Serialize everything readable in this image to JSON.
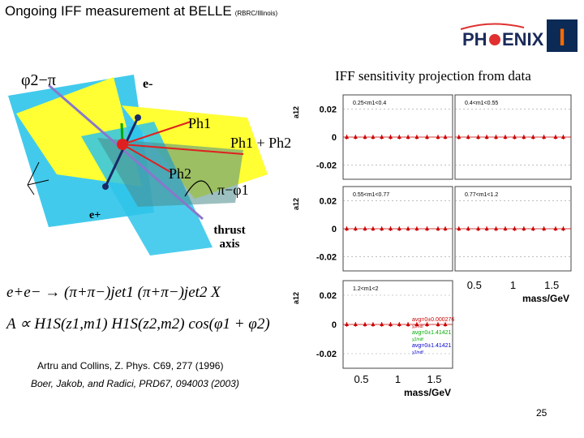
{
  "slide": {
    "title": "Ongoing IFF measurement at BELLE",
    "title_suffix": "(RBRC/Illinois)",
    "iff_caption": "IFF sensitivity projection from data",
    "page_number": "25",
    "references": [
      "Artru and Collins, Z. Phys. C69, 277 (1996)",
      "Boer, Jakob, and Radici, PRD67, 094003 (2003)"
    ]
  },
  "logo": {
    "text_left": "PH",
    "text_right": "ENIX",
    "emblem": "I"
  },
  "diagram": {
    "phi_label": "φ2−π",
    "e_minus": "e-",
    "e_plus": "e+",
    "ph1": "Ph1",
    "ph1_plus_ph2": "Ph1 + Ph2",
    "ph2": "Ph2",
    "pi_minus_phi1": "π−φ1",
    "thrust_axis": "thrust axis"
  },
  "formulas": {
    "reaction": "e+e− → (π+π−)jet1 (π+π−)jet2 X",
    "asymmetry": "A ∝ H1S(z1,m1) H1S(z2,m2) cos(φ1 + φ2)"
  },
  "chart_data": {
    "type": "scatter",
    "xlabel": "mass/GeV",
    "ylabel": "a12",
    "x_ticks": [
      "0.5",
      "1",
      "1.5"
    ],
    "y_ticks": [
      "0.02",
      "0",
      "-0.02"
    ],
    "xlim": [
      0.25,
      1.75
    ],
    "ylim": [
      -0.03,
      0.03
    ],
    "panels": [
      {
        "label": "0.25<m1<0.4",
        "points": [
          [
            0.3,
            0
          ],
          [
            0.42,
            0
          ],
          [
            0.55,
            0
          ],
          [
            0.66,
            0
          ],
          [
            0.78,
            0
          ],
          [
            0.9,
            0
          ],
          [
            1.02,
            0
          ],
          [
            1.14,
            0
          ],
          [
            1.26,
            0
          ],
          [
            1.4,
            0
          ],
          [
            1.55,
            0
          ],
          [
            1.65,
            0
          ]
        ]
      },
      {
        "label": "0.4<m1<0.55",
        "points": [
          [
            0.3,
            0
          ],
          [
            0.42,
            0
          ],
          [
            0.55,
            0
          ],
          [
            0.66,
            0
          ],
          [
            0.78,
            0
          ],
          [
            0.9,
            0
          ],
          [
            1.02,
            0
          ],
          [
            1.14,
            0
          ],
          [
            1.26,
            0
          ],
          [
            1.4,
            0
          ],
          [
            1.55,
            0
          ],
          [
            1.65,
            0
          ]
        ]
      },
      {
        "label": "0.55<m1<0.77",
        "points": [
          [
            0.3,
            0
          ],
          [
            0.42,
            0
          ],
          [
            0.55,
            0
          ],
          [
            0.66,
            0
          ],
          [
            0.78,
            0
          ],
          [
            0.9,
            0
          ],
          [
            1.02,
            0
          ],
          [
            1.14,
            0
          ],
          [
            1.26,
            0
          ],
          [
            1.4,
            0
          ],
          [
            1.55,
            0
          ],
          [
            1.65,
            0
          ]
        ]
      },
      {
        "label": "0.77<m1<1.2",
        "points": [
          [
            0.3,
            0
          ],
          [
            0.42,
            0
          ],
          [
            0.55,
            0
          ],
          [
            0.66,
            0
          ],
          [
            0.78,
            0
          ],
          [
            0.9,
            0
          ],
          [
            1.02,
            0
          ],
          [
            1.14,
            0
          ],
          [
            1.26,
            0
          ],
          [
            1.4,
            0
          ],
          [
            1.55,
            0
          ],
          [
            1.65,
            0
          ]
        ]
      },
      {
        "label": "1.2<m1<2",
        "points": [
          [
            0.3,
            0
          ],
          [
            0.42,
            0
          ],
          [
            0.55,
            0
          ],
          [
            0.66,
            0
          ],
          [
            0.78,
            0
          ],
          [
            0.9,
            0
          ],
          [
            1.02,
            0
          ],
          [
            1.14,
            0
          ],
          [
            1.26,
            0
          ],
          [
            1.4,
            0
          ],
          [
            1.55,
            0
          ],
          [
            1.65,
            0
          ]
        ]
      }
    ],
    "legend": [
      {
        "text": "avg=0±0.000276",
        "color": "#cc0000"
      },
      {
        "text": "χ2/ndf",
        "color": "#cc0000"
      },
      {
        "text": "avg=0±1.41421",
        "color": "#00aa00"
      },
      {
        "text": "χ2/ndf",
        "color": "#00aa00"
      },
      {
        "text": "avg=0±1.41421",
        "color": "#0000cc"
      },
      {
        "text": "χ2/ndf",
        "color": "#0000cc"
      }
    ],
    "marker_color": "#cc0000"
  }
}
